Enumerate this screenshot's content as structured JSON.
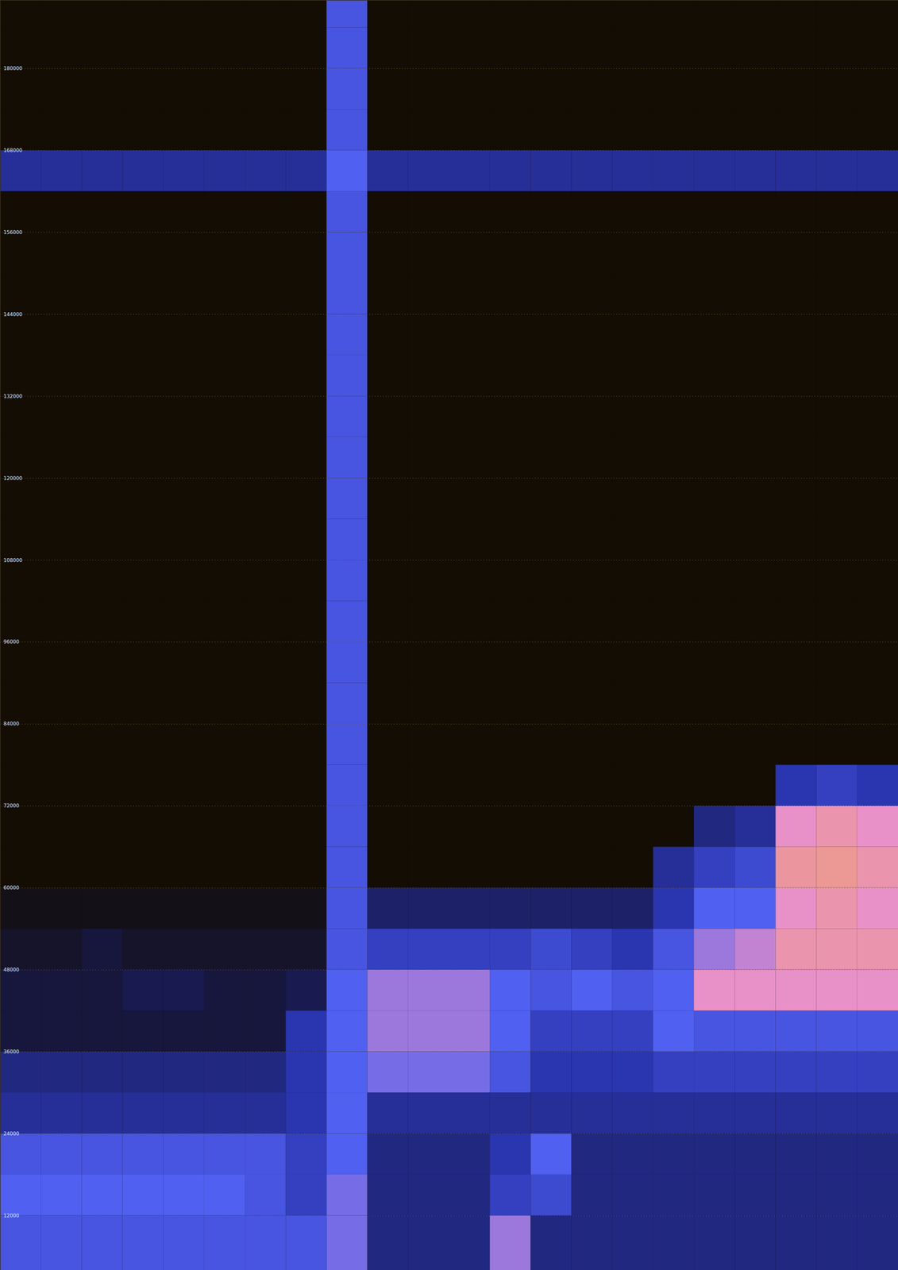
{
  "chart_data": {
    "type": "heatmap",
    "tick_labels": "y",
    "grid": true,
    "xlim": [
      0,
      22
    ],
    "ylim": [
      4000,
      190000
    ],
    "yticks": [
      12000,
      24000,
      36000,
      48000,
      60000,
      72000,
      84000,
      96000,
      108000,
      120000,
      132000,
      144000,
      156000,
      168000,
      180000
    ],
    "x_bins": [
      0,
      1,
      2,
      3,
      4,
      5,
      6,
      7,
      8,
      9,
      10,
      11,
      12,
      13,
      14,
      15,
      16,
      17,
      18,
      19,
      20,
      21,
      22
    ],
    "y_bins": [
      4000,
      12000,
      18000,
      24000,
      30000,
      36000,
      42000,
      48000,
      54000,
      60000,
      66000,
      72000,
      78000,
      84000,
      90000,
      96000,
      102000,
      108000,
      114000,
      120000,
      126000,
      132000,
      138000,
      144000,
      150000,
      156000,
      162000,
      168000,
      174000,
      180000,
      186000,
      190000
    ],
    "zlim": [
      0,
      100
    ],
    "z": [
      [
        55,
        55,
        55,
        55,
        55,
        55,
        55,
        55,
        65,
        30,
        30,
        30,
        70,
        30,
        30,
        30,
        30,
        30,
        30,
        30,
        30,
        30
      ],
      [
        60,
        60,
        60,
        60,
        60,
        60,
        55,
        45,
        65,
        30,
        30,
        30,
        45,
        50,
        30,
        30,
        30,
        30,
        30,
        30,
        30,
        30
      ],
      [
        55,
        55,
        55,
        55,
        55,
        55,
        55,
        45,
        60,
        30,
        30,
        30,
        40,
        60,
        30,
        30,
        30,
        30,
        30,
        30,
        30,
        30
      ],
      [
        35,
        35,
        35,
        35,
        35,
        35,
        35,
        40,
        60,
        35,
        35,
        35,
        35,
        35,
        35,
        35,
        35,
        35,
        35,
        35,
        35,
        35
      ],
      [
        30,
        30,
        30,
        30,
        30,
        30,
        30,
        40,
        60,
        65,
        65,
        65,
        55,
        40,
        40,
        40,
        45,
        45,
        45,
        45,
        45,
        45
      ],
      [
        15,
        15,
        15,
        15,
        15,
        15,
        15,
        40,
        60,
        70,
        70,
        70,
        60,
        45,
        45,
        45,
        60,
        55,
        55,
        55,
        55,
        55
      ],
      [
        15,
        15,
        15,
        20,
        20,
        15,
        15,
        20,
        60,
        70,
        70,
        70,
        60,
        55,
        60,
        55,
        60,
        80,
        80,
        80,
        80,
        80
      ],
      [
        10,
        10,
        15,
        10,
        10,
        10,
        10,
        10,
        55,
        45,
        45,
        45,
        45,
        50,
        45,
        40,
        55,
        70,
        75,
        85,
        85,
        85
      ],
      [
        5,
        5,
        5,
        5,
        5,
        5,
        5,
        5,
        55,
        25,
        25,
        25,
        25,
        25,
        25,
        25,
        40,
        60,
        60,
        80,
        85,
        80
      ],
      [
        0,
        0,
        0,
        0,
        0,
        0,
        0,
        0,
        55,
        0,
        0,
        0,
        0,
        0,
        0,
        0,
        35,
        45,
        50,
        88,
        90,
        85
      ],
      [
        0,
        0,
        0,
        0,
        0,
        0,
        0,
        0,
        55,
        0,
        0,
        0,
        0,
        0,
        0,
        0,
        0,
        30,
        35,
        80,
        85,
        80
      ],
      [
        0,
        0,
        0,
        0,
        0,
        0,
        0,
        0,
        55,
        0,
        0,
        0,
        0,
        0,
        0,
        0,
        0,
        0,
        0,
        40,
        45,
        40
      ],
      [
        0,
        0,
        0,
        0,
        0,
        0,
        0,
        0,
        55,
        0,
        0,
        0,
        0,
        0,
        0,
        0,
        0,
        0,
        0,
        0,
        0,
        0
      ],
      [
        0,
        0,
        0,
        0,
        0,
        0,
        0,
        0,
        55,
        0,
        0,
        0,
        0,
        0,
        0,
        0,
        0,
        0,
        0,
        0,
        0,
        0
      ],
      [
        0,
        0,
        0,
        0,
        0,
        0,
        0,
        0,
        55,
        0,
        0,
        0,
        0,
        0,
        0,
        0,
        0,
        0,
        0,
        0,
        0,
        0
      ],
      [
        0,
        0,
        0,
        0,
        0,
        0,
        0,
        0,
        55,
        0,
        0,
        0,
        0,
        0,
        0,
        0,
        0,
        0,
        0,
        0,
        0,
        0
      ],
      [
        0,
        0,
        0,
        0,
        0,
        0,
        0,
        0,
        55,
        0,
        0,
        0,
        0,
        0,
        0,
        0,
        0,
        0,
        0,
        0,
        0,
        0
      ],
      [
        0,
        0,
        0,
        0,
        0,
        0,
        0,
        0,
        55,
        0,
        0,
        0,
        0,
        0,
        0,
        0,
        0,
        0,
        0,
        0,
        0,
        0
      ],
      [
        0,
        0,
        0,
        0,
        0,
        0,
        0,
        0,
        55,
        0,
        0,
        0,
        0,
        0,
        0,
        0,
        0,
        0,
        0,
        0,
        0,
        0
      ],
      [
        0,
        0,
        0,
        0,
        0,
        0,
        0,
        0,
        55,
        0,
        0,
        0,
        0,
        0,
        0,
        0,
        0,
        0,
        0,
        0,
        0,
        0
      ],
      [
        0,
        0,
        0,
        0,
        0,
        0,
        0,
        0,
        55,
        0,
        0,
        0,
        0,
        0,
        0,
        0,
        0,
        0,
        0,
        0,
        0,
        0
      ],
      [
        0,
        0,
        0,
        0,
        0,
        0,
        0,
        0,
        55,
        0,
        0,
        0,
        0,
        0,
        0,
        0,
        0,
        0,
        0,
        0,
        0,
        0
      ],
      [
        0,
        0,
        0,
        0,
        0,
        0,
        0,
        0,
        55,
        0,
        0,
        0,
        0,
        0,
        0,
        0,
        0,
        0,
        0,
        0,
        0,
        0
      ],
      [
        0,
        0,
        0,
        0,
        0,
        0,
        0,
        0,
        55,
        0,
        0,
        0,
        0,
        0,
        0,
        0,
        0,
        0,
        0,
        0,
        0,
        0
      ],
      [
        0,
        0,
        0,
        0,
        0,
        0,
        0,
        0,
        55,
        0,
        0,
        0,
        0,
        0,
        0,
        0,
        0,
        0,
        0,
        0,
        0,
        0
      ],
      [
        0,
        0,
        0,
        0,
        0,
        0,
        0,
        0,
        55,
        0,
        0,
        0,
        0,
        0,
        0,
        0,
        0,
        0,
        0,
        0,
        0,
        0
      ],
      [
        35,
        35,
        35,
        35,
        35,
        35,
        35,
        35,
        60,
        35,
        35,
        35,
        35,
        35,
        35,
        35,
        35,
        35,
        35,
        35,
        35,
        35
      ],
      [
        0,
        0,
        0,
        0,
        0,
        0,
        0,
        0,
        55,
        0,
        0,
        0,
        0,
        0,
        0,
        0,
        0,
        0,
        0,
        0,
        0,
        0
      ],
      [
        0,
        0,
        0,
        0,
        0,
        0,
        0,
        0,
        55,
        0,
        0,
        0,
        0,
        0,
        0,
        0,
        0,
        0,
        0,
        0,
        0,
        0
      ],
      [
        0,
        0,
        0,
        0,
        0,
        0,
        0,
        0,
        55,
        0,
        0,
        0,
        0,
        0,
        0,
        0,
        0,
        0,
        0,
        0,
        0,
        0
      ],
      [
        0,
        0,
        0,
        0,
        0,
        0,
        0,
        0,
        55,
        0,
        0,
        0,
        0,
        0,
        0,
        0,
        0,
        0,
        0,
        0,
        0,
        0
      ]
    ]
  }
}
